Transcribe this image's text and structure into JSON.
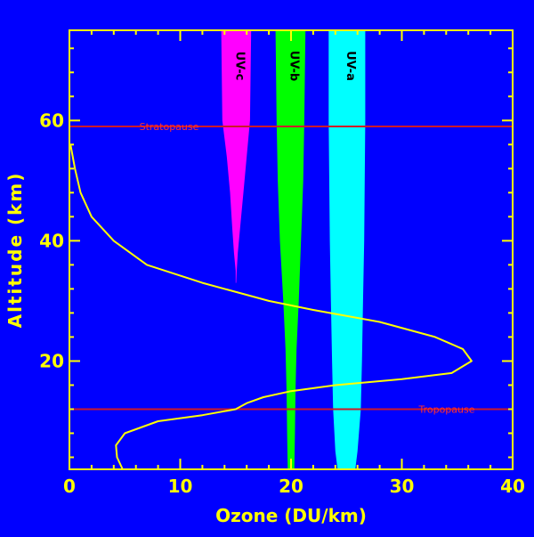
{
  "chart_data": {
    "type": "line",
    "xlabel": "Ozone (DU/km)",
    "ylabel": "Altitude (km)",
    "xlim": [
      0,
      40
    ],
    "ylim": [
      2,
      75
    ],
    "xticks": [
      0,
      10,
      20,
      30,
      40
    ],
    "yticks": [
      20,
      40,
      60
    ],
    "background": "#0000ff",
    "axis_color": "#ffff00",
    "series": [
      {
        "color": "#ffff00",
        "x": [
          4.8,
          4.3,
          4.2,
          5.0,
          8.0,
          12.0,
          15.0,
          16.0,
          17.5,
          20.0,
          24.0,
          30.0,
          34.5,
          36.3,
          35.5,
          33.0,
          28.0,
          22.0,
          18.0,
          12.0,
          7.0,
          4.0,
          2.0,
          1.0,
          0.5,
          0.3,
          0.1
        ],
        "y": [
          2,
          4,
          6,
          8,
          10,
          11,
          12,
          13,
          14,
          15,
          16,
          17,
          18,
          20,
          22,
          24,
          26.5,
          28.5,
          30,
          33,
          36,
          40,
          44,
          48,
          52,
          54,
          56
        ]
      }
    ],
    "reference_lines": [
      {
        "label": "Stratopause",
        "y": 59
      },
      {
        "label": "Tropopause",
        "y": 12
      }
    ],
    "bands": [
      {
        "label": "UV-c",
        "color": "#ff00ff",
        "top_x": [
          13.7,
          16.4
        ],
        "profile": [
          [
            75,
            13.7,
            16.4
          ],
          [
            60,
            13.8,
            16.3
          ],
          [
            54,
            14.2,
            16.0
          ],
          [
            48,
            14.5,
            15.7
          ],
          [
            42,
            14.7,
            15.4
          ],
          [
            38,
            14.85,
            15.2
          ],
          [
            35,
            15.0,
            15.1
          ],
          [
            33,
            15.0,
            15.05
          ]
        ]
      },
      {
        "label": "UV-b",
        "color": "#00ff00",
        "profile": [
          [
            75,
            18.6,
            21.3
          ],
          [
            60,
            18.7,
            21.2
          ],
          [
            50,
            18.8,
            21.1
          ],
          [
            40,
            19.0,
            20.9
          ],
          [
            30,
            19.3,
            20.7
          ],
          [
            22,
            19.5,
            20.5
          ],
          [
            15,
            19.6,
            20.4
          ],
          [
            8,
            19.65,
            20.35
          ],
          [
            2,
            19.7,
            20.3
          ]
        ]
      },
      {
        "label": "UV-a",
        "color": "#00ffff",
        "profile": [
          [
            75,
            23.4,
            26.7
          ],
          [
            60,
            23.4,
            26.7
          ],
          [
            40,
            23.5,
            26.6
          ],
          [
            30,
            23.6,
            26.5
          ],
          [
            20,
            23.7,
            26.4
          ],
          [
            12,
            23.8,
            26.3
          ],
          [
            5,
            24.0,
            26.0
          ],
          [
            2,
            24.2,
            25.8
          ]
        ]
      }
    ]
  }
}
